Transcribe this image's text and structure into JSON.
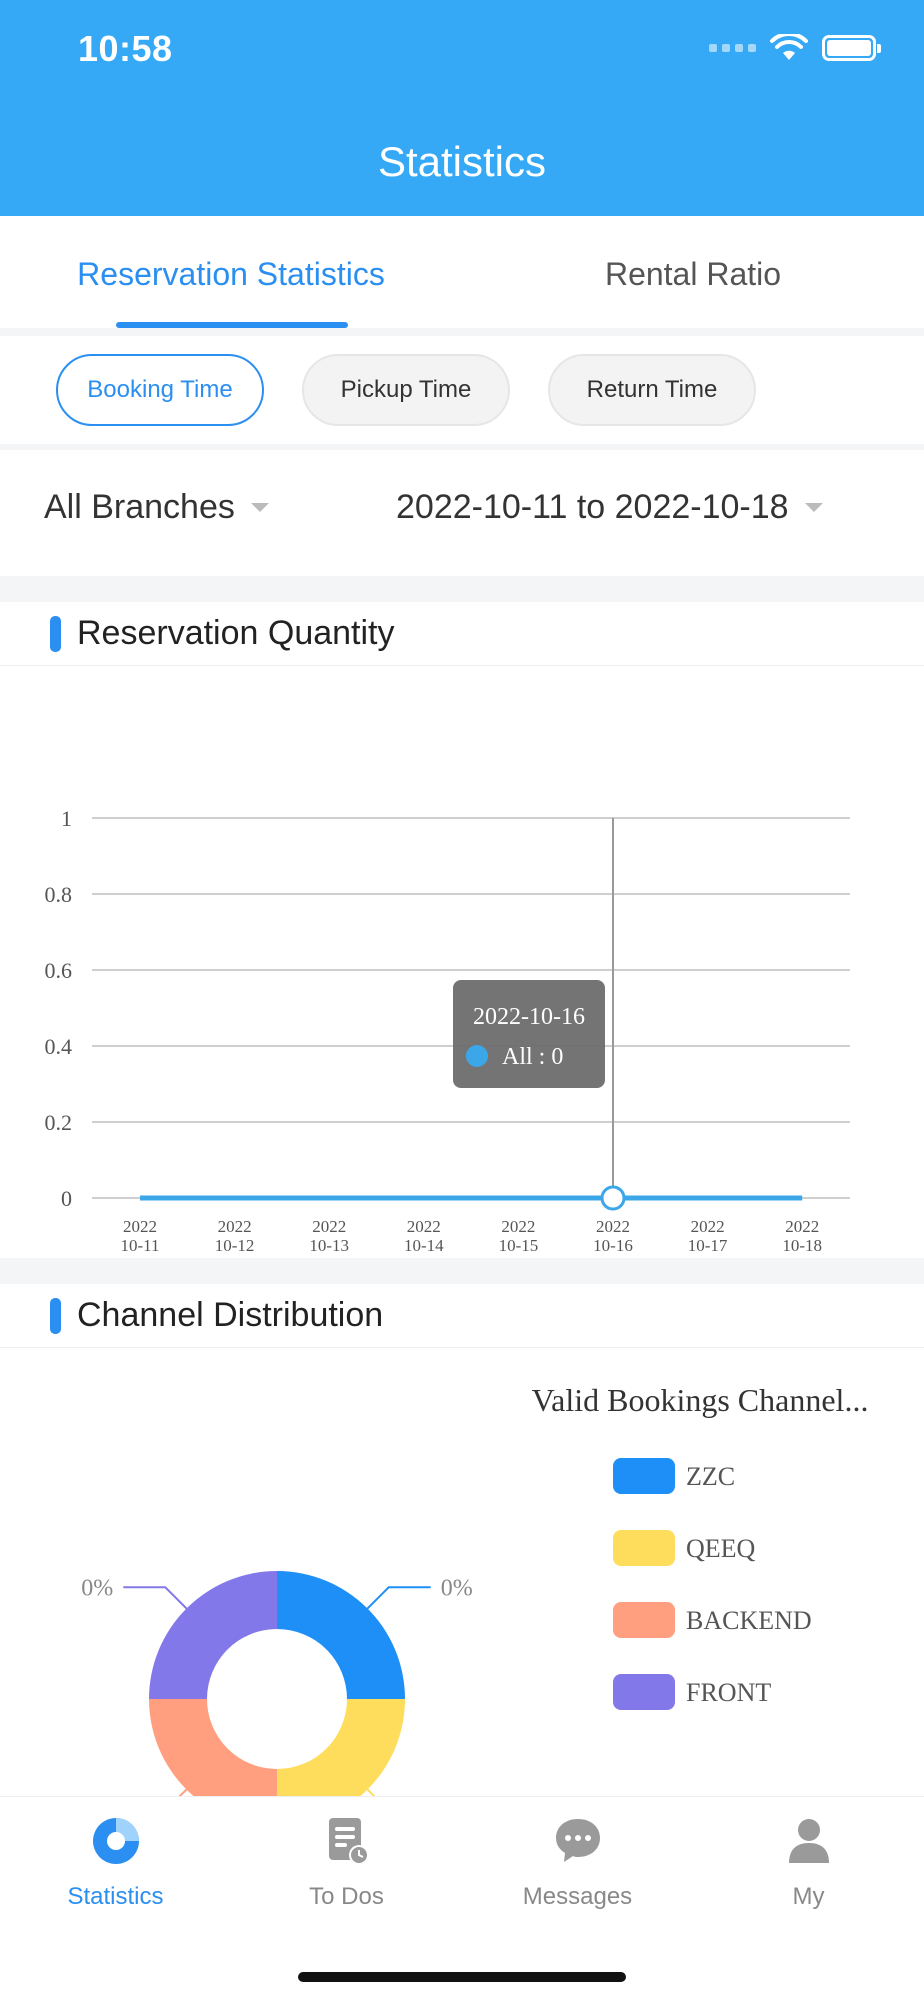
{
  "status_bar": {
    "time": "10:58"
  },
  "header": {
    "title": "Statistics"
  },
  "tabs": [
    {
      "label": "Reservation Statistics",
      "active": true
    },
    {
      "label": "Rental Ratio",
      "active": false
    }
  ],
  "time_filters": [
    {
      "label": "Booking Time",
      "active": true
    },
    {
      "label": "Pickup Time",
      "active": false
    },
    {
      "label": "Return Time",
      "active": false
    }
  ],
  "filters": {
    "branch": "All Branches",
    "date_range": "2022-10-11 to 2022-10-18"
  },
  "reservation_card": {
    "title": "Reservation Quantity"
  },
  "channel_card": {
    "title": "Channel Distribution"
  },
  "chart_data": [
    {
      "type": "line",
      "x": [
        "2022-10-11",
        "2022-10-12",
        "2022-10-13",
        "2022-10-14",
        "2022-10-15",
        "2022-10-16",
        "2022-10-17",
        "2022-10-18"
      ],
      "x_tick_labels": [
        [
          "2022",
          "10-11"
        ],
        [
          "2022",
          "10-12"
        ],
        [
          "2022",
          "10-13"
        ],
        [
          "2022",
          "10-14"
        ],
        [
          "2022",
          "10-15"
        ],
        [
          "2022",
          "10-16"
        ],
        [
          "2022",
          "10-17"
        ],
        [
          "2022",
          "10-18"
        ]
      ],
      "series": [
        {
          "name": "All",
          "values": [
            0,
            0,
            0,
            0,
            0,
            0,
            0,
            0
          ],
          "color": "#3ba6e8"
        }
      ],
      "ylim": [
        0,
        1
      ],
      "y_ticks": [
        "0",
        "0.2",
        "0.4",
        "0.6",
        "0.8",
        "1"
      ],
      "grid": true,
      "tooltip": {
        "title": "2022-10-16",
        "text": "All : 0",
        "index": 5
      }
    },
    {
      "type": "pie",
      "title": "Valid Bookings Channel...",
      "legend_position": "right",
      "slices": [
        {
          "name": "ZZC",
          "value": 0,
          "label": "0%",
          "color": "#1e8ff7"
        },
        {
          "name": "QEEQ",
          "value": 0,
          "label": "0%",
          "color": "#ffdd5c"
        },
        {
          "name": "BACKEND",
          "value": 0,
          "label": "0%",
          "color": "#ff9f7f"
        },
        {
          "name": "FRONT",
          "value": 0,
          "label": "0%",
          "color": "#8378ea"
        }
      ]
    }
  ],
  "bottom_nav": [
    {
      "label": "Statistics",
      "icon": "pie-chart-icon",
      "active": true
    },
    {
      "label": "To Dos",
      "icon": "todo-list-icon",
      "active": false
    },
    {
      "label": "Messages",
      "icon": "chat-bubble-icon",
      "active": false
    },
    {
      "label": "My",
      "icon": "person-icon",
      "active": false
    }
  ]
}
